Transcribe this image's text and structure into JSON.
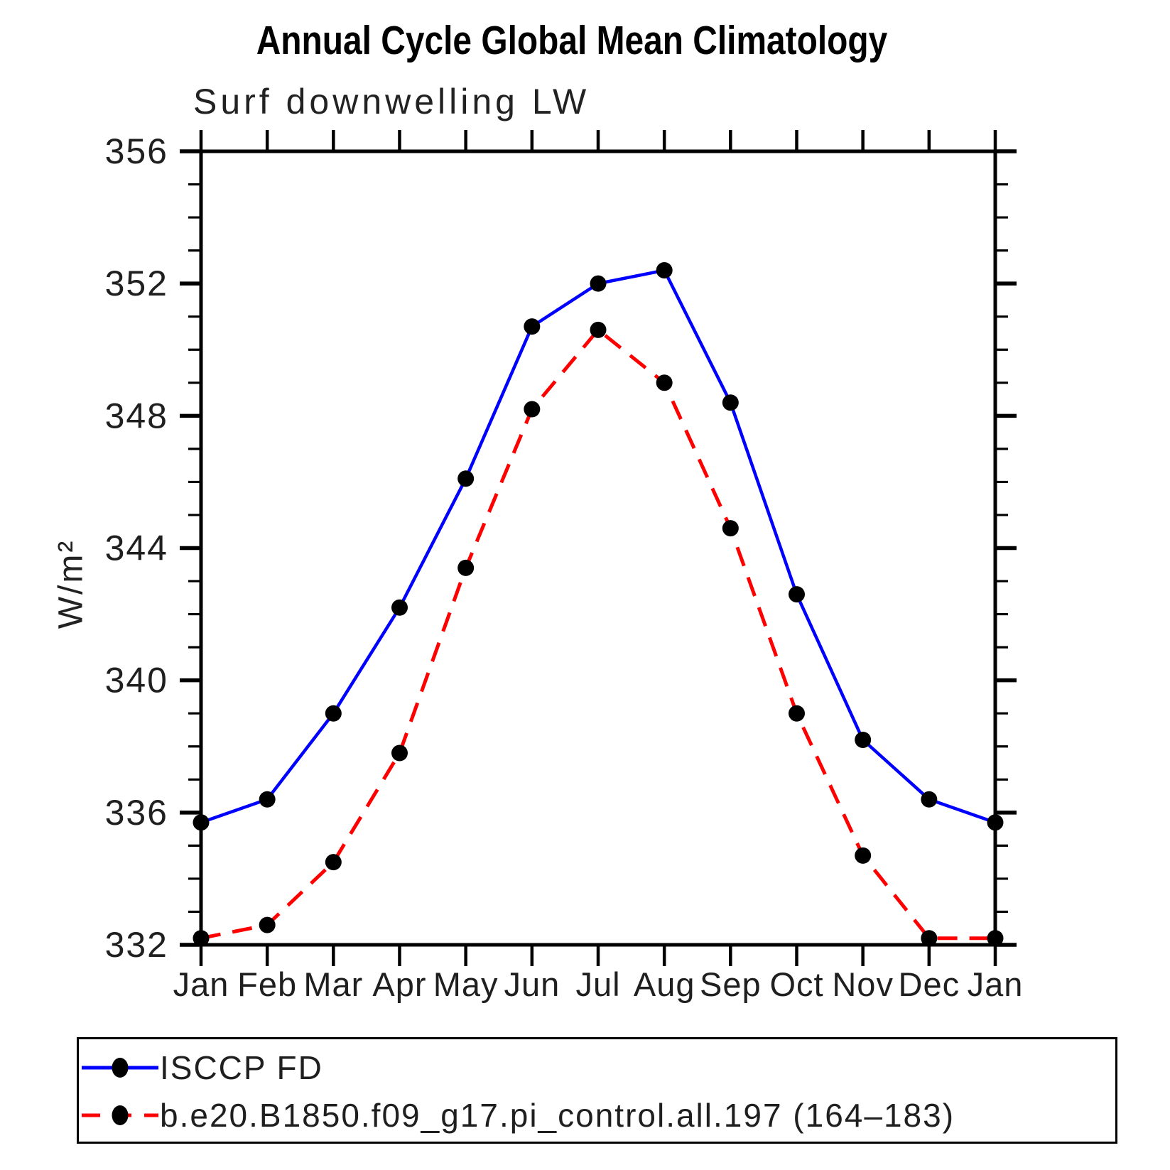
{
  "chart_data": {
    "type": "line",
    "title": "Annual Cycle Global Mean Climatology",
    "subtitle": "Surf downwelling LW",
    "ylabel": "W/m²",
    "categories": [
      "Jan",
      "Feb",
      "Mar",
      "Apr",
      "May",
      "Jun",
      "Jul",
      "Aug",
      "Sep",
      "Oct",
      "Nov",
      "Dec",
      "Jan"
    ],
    "ylim": [
      332,
      356
    ],
    "y_major_step": 4,
    "y_minor_step": 1,
    "y_tick_labels": [
      "332",
      "336",
      "340",
      "344",
      "348",
      "352",
      "356"
    ],
    "grid": false,
    "legend_position": "bottom",
    "series": [
      {
        "name": "ISCCP FD",
        "color": "#0000ff",
        "style": "solid",
        "marker": "circle",
        "marker_color": "#000000",
        "values": [
          335.7,
          336.4,
          339.0,
          342.2,
          346.1,
          350.7,
          352.0,
          352.4,
          348.4,
          342.6,
          338.2,
          336.4,
          335.7
        ]
      },
      {
        "name": "b.e20.B1850.f09_g17.pi_control.all.197 (164–183)",
        "color": "#ff0000",
        "style": "dashed",
        "marker": "circle",
        "marker_color": "#000000",
        "values": [
          332.2,
          332.6,
          334.5,
          337.8,
          343.4,
          348.2,
          350.6,
          349.0,
          344.6,
          339.0,
          334.7,
          332.2,
          332.2
        ]
      }
    ]
  }
}
